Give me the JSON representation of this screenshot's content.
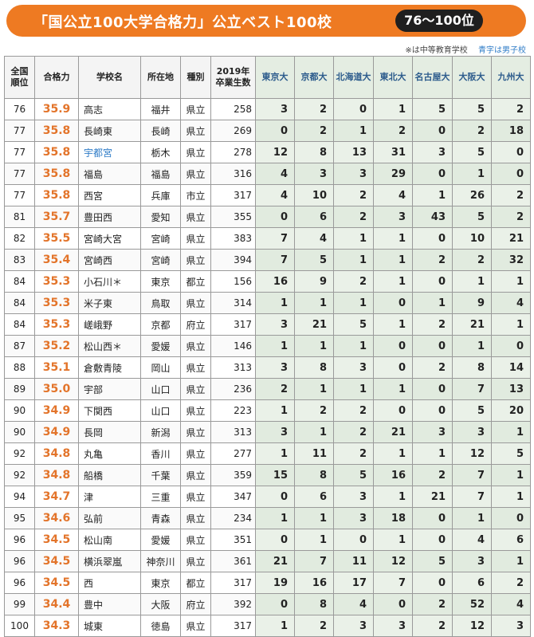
{
  "banner": {
    "title": "「国公立100大学合格力」公立ベスト100校",
    "range": "76～100位"
  },
  "notes": {
    "asterisk": "※は中等教育学校",
    "blue": "青字は男子校"
  },
  "colors": {
    "accent": "#ee7a22",
    "score": "#e3742a",
    "blue_school": "#2f7cc7",
    "university_col": "#eaf1e8"
  },
  "table": {
    "headers": [
      "全国順位",
      "合格力",
      "学校名",
      "所在地",
      "種別",
      "2019年卒業生数",
      "東京大",
      "京都大",
      "北海道大",
      "東北大",
      "名古屋大",
      "大阪大",
      "九州大"
    ],
    "rows": [
      {
        "rank": "76",
        "score": "35.9",
        "name": "高志",
        "blue": false,
        "loc": "福井",
        "type": "県立",
        "grads": "258",
        "u": [
          "3",
          "2",
          "0",
          "1",
          "5",
          "5",
          "2"
        ]
      },
      {
        "rank": "77",
        "score": "35.8",
        "name": "長崎東",
        "blue": false,
        "loc": "長崎",
        "type": "県立",
        "grads": "269",
        "u": [
          "0",
          "2",
          "1",
          "2",
          "0",
          "2",
          "18"
        ]
      },
      {
        "rank": "77",
        "score": "35.8",
        "name": "宇都宮",
        "blue": true,
        "loc": "栃木",
        "type": "県立",
        "grads": "278",
        "u": [
          "12",
          "8",
          "13",
          "31",
          "3",
          "5",
          "0"
        ]
      },
      {
        "rank": "77",
        "score": "35.8",
        "name": "福島",
        "blue": false,
        "loc": "福島",
        "type": "県立",
        "grads": "316",
        "u": [
          "4",
          "3",
          "3",
          "29",
          "0",
          "1",
          "0"
        ]
      },
      {
        "rank": "77",
        "score": "35.8",
        "name": "西宮",
        "blue": false,
        "loc": "兵庫",
        "type": "市立",
        "grads": "317",
        "u": [
          "4",
          "10",
          "2",
          "4",
          "1",
          "26",
          "2"
        ]
      },
      {
        "rank": "81",
        "score": "35.7",
        "name": "豊田西",
        "blue": false,
        "loc": "愛知",
        "type": "県立",
        "grads": "355",
        "u": [
          "0",
          "6",
          "2",
          "3",
          "43",
          "5",
          "2"
        ]
      },
      {
        "rank": "82",
        "score": "35.5",
        "name": "宮崎大宮",
        "blue": false,
        "loc": "宮崎",
        "type": "県立",
        "grads": "383",
        "u": [
          "7",
          "4",
          "1",
          "1",
          "0",
          "10",
          "21"
        ]
      },
      {
        "rank": "83",
        "score": "35.4",
        "name": "宮崎西",
        "blue": false,
        "loc": "宮崎",
        "type": "県立",
        "grads": "394",
        "u": [
          "7",
          "5",
          "1",
          "1",
          "2",
          "2",
          "32"
        ]
      },
      {
        "rank": "84",
        "score": "35.3",
        "name": "小石川＊",
        "blue": false,
        "loc": "東京",
        "type": "都立",
        "grads": "156",
        "u": [
          "16",
          "9",
          "2",
          "1",
          "0",
          "1",
          "1"
        ]
      },
      {
        "rank": "84",
        "score": "35.3",
        "name": "米子東",
        "blue": false,
        "loc": "鳥取",
        "type": "県立",
        "grads": "314",
        "u": [
          "1",
          "1",
          "1",
          "0",
          "1",
          "9",
          "4"
        ]
      },
      {
        "rank": "84",
        "score": "35.3",
        "name": "嵯峨野",
        "blue": false,
        "loc": "京都",
        "type": "府立",
        "grads": "317",
        "u": [
          "3",
          "21",
          "5",
          "1",
          "2",
          "21",
          "1"
        ]
      },
      {
        "rank": "87",
        "score": "35.2",
        "name": "松山西＊",
        "blue": false,
        "loc": "愛媛",
        "type": "県立",
        "grads": "146",
        "u": [
          "1",
          "1",
          "1",
          "0",
          "0",
          "1",
          "0"
        ]
      },
      {
        "rank": "88",
        "score": "35.1",
        "name": "倉敷青陵",
        "blue": false,
        "loc": "岡山",
        "type": "県立",
        "grads": "313",
        "u": [
          "3",
          "8",
          "3",
          "0",
          "2",
          "8",
          "14"
        ]
      },
      {
        "rank": "89",
        "score": "35.0",
        "name": "宇部",
        "blue": false,
        "loc": "山口",
        "type": "県立",
        "grads": "236",
        "u": [
          "2",
          "1",
          "1",
          "1",
          "0",
          "7",
          "13"
        ]
      },
      {
        "rank": "90",
        "score": "34.9",
        "name": "下関西",
        "blue": false,
        "loc": "山口",
        "type": "県立",
        "grads": "223",
        "u": [
          "1",
          "2",
          "2",
          "0",
          "0",
          "5",
          "20"
        ]
      },
      {
        "rank": "90",
        "score": "34.9",
        "name": "長岡",
        "blue": false,
        "loc": "新潟",
        "type": "県立",
        "grads": "313",
        "u": [
          "3",
          "1",
          "2",
          "21",
          "3",
          "3",
          "1"
        ]
      },
      {
        "rank": "92",
        "score": "34.8",
        "name": "丸亀",
        "blue": false,
        "loc": "香川",
        "type": "県立",
        "grads": "277",
        "u": [
          "1",
          "11",
          "2",
          "1",
          "1",
          "12",
          "5"
        ]
      },
      {
        "rank": "92",
        "score": "34.8",
        "name": "船橋",
        "blue": false,
        "loc": "千葉",
        "type": "県立",
        "grads": "359",
        "u": [
          "15",
          "8",
          "5",
          "16",
          "2",
          "7",
          "1"
        ]
      },
      {
        "rank": "94",
        "score": "34.7",
        "name": "津",
        "blue": false,
        "loc": "三重",
        "type": "県立",
        "grads": "347",
        "u": [
          "0",
          "6",
          "3",
          "1",
          "21",
          "7",
          "1"
        ]
      },
      {
        "rank": "95",
        "score": "34.6",
        "name": "弘前",
        "blue": false,
        "loc": "青森",
        "type": "県立",
        "grads": "234",
        "u": [
          "1",
          "1",
          "3",
          "18",
          "0",
          "1",
          "0"
        ]
      },
      {
        "rank": "96",
        "score": "34.5",
        "name": "松山南",
        "blue": false,
        "loc": "愛媛",
        "type": "県立",
        "grads": "351",
        "u": [
          "0",
          "1",
          "0",
          "1",
          "0",
          "4",
          "6"
        ]
      },
      {
        "rank": "96",
        "score": "34.5",
        "name": "横浜翠嵐",
        "blue": false,
        "loc": "神奈川",
        "type": "県立",
        "grads": "361",
        "u": [
          "21",
          "7",
          "11",
          "12",
          "5",
          "3",
          "1"
        ]
      },
      {
        "rank": "96",
        "score": "34.5",
        "name": "西",
        "blue": false,
        "loc": "東京",
        "type": "都立",
        "grads": "317",
        "u": [
          "19",
          "16",
          "17",
          "7",
          "0",
          "6",
          "2"
        ]
      },
      {
        "rank": "99",
        "score": "34.4",
        "name": "豊中",
        "blue": false,
        "loc": "大阪",
        "type": "府立",
        "grads": "392",
        "u": [
          "0",
          "8",
          "4",
          "0",
          "2",
          "52",
          "4"
        ]
      },
      {
        "rank": "100",
        "score": "34.3",
        "name": "城東",
        "blue": false,
        "loc": "徳島",
        "type": "県立",
        "grads": "317",
        "u": [
          "1",
          "2",
          "3",
          "3",
          "2",
          "12",
          "3"
        ]
      }
    ]
  }
}
